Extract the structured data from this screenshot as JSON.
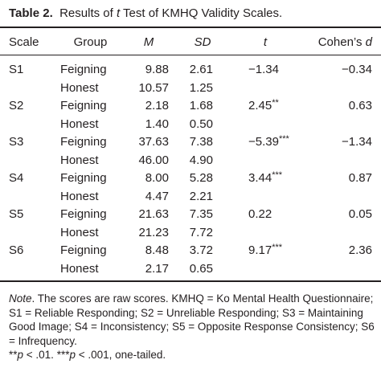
{
  "title": {
    "label": "Table 2.",
    "text_before": "Results of ",
    "text_italic": "t",
    "text_after": " Test of KMHQ Validity Scales."
  },
  "headers": {
    "scale": "Scale",
    "group": "Group",
    "m": "M",
    "sd": "SD",
    "t": "t",
    "d_prefix": "Cohen’s ",
    "d_italic": "d"
  },
  "rows": [
    {
      "scale": "S1",
      "group": "Feigning",
      "m": "9.88",
      "sd": "2.61",
      "t": "−1.34",
      "sig": "",
      "d": "−0.34"
    },
    {
      "scale": "",
      "group": "Honest",
      "m": "10.57",
      "sd": "1.25",
      "t": "",
      "sig": "",
      "d": ""
    },
    {
      "scale": "S2",
      "group": "Feigning",
      "m": "2.18",
      "sd": "1.68",
      "t": "2.45",
      "sig": "**",
      "d": "0.63"
    },
    {
      "scale": "",
      "group": "Honest",
      "m": "1.40",
      "sd": "0.50",
      "t": "",
      "sig": "",
      "d": ""
    },
    {
      "scale": "S3",
      "group": "Feigning",
      "m": "37.63",
      "sd": "7.38",
      "t": "−5.39",
      "sig": "***",
      "d": "−1.34"
    },
    {
      "scale": "",
      "group": "Honest",
      "m": "46.00",
      "sd": "4.90",
      "t": "",
      "sig": "",
      "d": ""
    },
    {
      "scale": "S4",
      "group": "Feigning",
      "m": "8.00",
      "sd": "5.28",
      "t": "3.44",
      "sig": "***",
      "d": "0.87"
    },
    {
      "scale": "",
      "group": "Honest",
      "m": "4.47",
      "sd": "2.21",
      "t": "",
      "sig": "",
      "d": ""
    },
    {
      "scale": "S5",
      "group": "Feigning",
      "m": "21.63",
      "sd": "7.35",
      "t": "0.22",
      "sig": "",
      "d": "0.05"
    },
    {
      "scale": "",
      "group": "Honest",
      "m": "21.23",
      "sd": "7.72",
      "t": "",
      "sig": "",
      "d": ""
    },
    {
      "scale": "S6",
      "group": "Feigning",
      "m": "8.48",
      "sd": "3.72",
      "t": "9.17",
      "sig": "***",
      "d": "2.36"
    },
    {
      "scale": "",
      "group": "Honest",
      "m": "2.17",
      "sd": "0.65",
      "t": "",
      "sig": "",
      "d": ""
    }
  ],
  "note": {
    "label": "Note",
    "text": ". The scores are raw scores. KMHQ = Ko Mental Health Questionnaire; S1 = Reliable Responding; S2 = Unreliable Responding; S3 = Maintaining Good Image; S4 = Inconsistency; S5 = Opposite Response Consistency; S6 = Infrequency.",
    "sig1_mark": "**",
    "sig1_p": "p",
    "sig1_text": " < .01. ",
    "sig2_mark": "***",
    "sig2_p": "p",
    "sig2_text": " < .001, one-tailed."
  }
}
